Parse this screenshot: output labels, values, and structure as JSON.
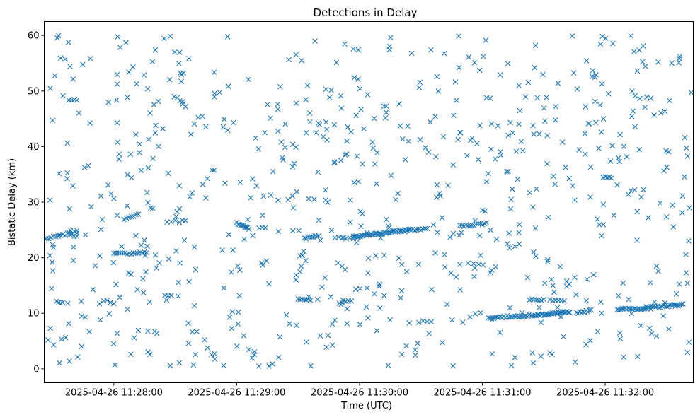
{
  "chart_data": {
    "type": "scatter",
    "title": "Detections in Delay",
    "xlabel": "Time (UTC)",
    "ylabel": "Bistatic Delay (km)",
    "ylim": [
      -2.5,
      62.5
    ],
    "xlim": [
      "2025-04-26 11:27:26",
      "2025-04-26 11:32:43"
    ],
    "y_ticks": [
      0,
      10,
      20,
      30,
      40,
      50,
      60
    ],
    "x_ticks": [
      "2025-04-26 11:28:00",
      "2025-04-26 11:29:00",
      "2025-04-26 11:30:00",
      "2025-04-26 11:31:00",
      "2025-04-26 11:32:00"
    ],
    "marker": "x",
    "grid": false,
    "legend": "none",
    "color": "#1f77b4",
    "series": [
      {
        "tracks": [
          {
            "start": [
              "2025-04-26 11:27:27",
              23.4
            ],
            "end": [
              "2025-04-26 11:27:42",
              24.6
            ],
            "n": 14
          },
          {
            "start": [
              "2025-04-26 11:27:32",
              12.2
            ],
            "end": [
              "2025-04-26 11:27:35",
              11.9
            ],
            "n": 4
          },
          {
            "start": [
              "2025-04-26 11:27:38",
              48.2
            ],
            "end": [
              "2025-04-26 11:27:42",
              48.5
            ],
            "n": 4
          },
          {
            "start": [
              "2025-04-26 11:27:38",
              24.5
            ],
            "end": [
              "2025-04-26 11:27:42",
              23.7
            ],
            "n": 4
          },
          {
            "start": [
              "2025-04-26 11:27:55",
              12.4
            ],
            "end": [
              "2025-04-26 11:28:00",
              11.9
            ],
            "n": 4
          },
          {
            "start": [
              "2025-04-26 11:28:00",
              20.7
            ],
            "end": [
              "2025-04-26 11:28:16",
              20.9
            ],
            "n": 16
          },
          {
            "start": [
              "2025-04-26 11:28:05",
              27.0
            ],
            "end": [
              "2025-04-26 11:28:12",
              27.8
            ],
            "n": 7
          },
          {
            "start": [
              "2025-04-26 11:28:18",
              29.0
            ],
            "end": [
              "2025-04-26 11:28:19",
              28.8
            ],
            "n": 2
          },
          {
            "start": [
              "2025-04-26 11:28:25",
              13.2
            ],
            "end": [
              "2025-04-26 11:28:28",
              13.2
            ],
            "n": 3
          },
          {
            "start": [
              "2025-04-26 11:28:26",
              26.5
            ],
            "end": [
              "2025-04-26 11:28:30",
              26.7
            ],
            "n": 3
          },
          {
            "start": [
              "2025-04-26 11:28:31",
              48.8
            ],
            "end": [
              "2025-04-26 11:28:35",
              47.2
            ],
            "n": 4
          },
          {
            "start": [
              "2025-04-26 11:28:32",
              26.5
            ],
            "end": [
              "2025-04-26 11:28:35",
              26.8
            ],
            "n": 3
          },
          {
            "start": [
              "2025-04-26 11:28:33",
              53.1
            ],
            "end": [
              "2025-04-26 11:28:34",
              53.1
            ],
            "n": 2
          },
          {
            "start": [
              "2025-04-26 11:28:48",
              35.7
            ],
            "end": [
              "2025-04-26 11:28:49",
              35.7
            ],
            "n": 2
          },
          {
            "start": [
              "2025-04-26 11:29:00",
              26.2
            ],
            "end": [
              "2025-04-26 11:29:06",
              25.3
            ],
            "n": 10
          },
          {
            "start": [
              "2025-04-26 11:29:11",
              25.4
            ],
            "end": [
              "2025-04-26 11:29:14",
              25.3
            ],
            "n": 3
          },
          {
            "start": [
              "2025-04-26 11:29:30",
              12.6
            ],
            "end": [
              "2025-04-26 11:29:36",
              12.4
            ],
            "n": 7
          },
          {
            "start": [
              "2025-04-26 11:29:33",
              23.5
            ],
            "end": [
              "2025-04-26 11:29:40",
              24.0
            ],
            "n": 9
          },
          {
            "start": [
              "2025-04-26 11:29:48",
              23.6
            ],
            "end": [
              "2025-04-26 11:29:57",
              23.6
            ],
            "n": 6
          },
          {
            "start": [
              "2025-04-26 11:29:52",
              12.2
            ],
            "end": [
              "2025-04-26 11:29:56",
              12.2
            ],
            "n": 4
          },
          {
            "start": [
              "2025-04-26 11:29:57",
              23.7
            ],
            "end": [
              "2025-04-26 11:30:25",
              25.1
            ],
            "n": 50
          },
          {
            "start": [
              "2025-04-26 11:30:12",
              47.1
            ],
            "end": [
              "2025-04-26 11:30:13",
              47.3
            ],
            "n": 2
          },
          {
            "start": [
              "2025-04-26 11:30:26",
              25.0
            ],
            "end": [
              "2025-04-26 11:30:33",
              25.2
            ],
            "n": 8
          },
          {
            "start": [
              "2025-04-26 11:30:29",
              8.5
            ],
            "end": [
              "2025-04-26 11:30:35",
              8.5
            ],
            "n": 4
          },
          {
            "start": [
              "2025-04-26 11:30:49",
              25.7
            ],
            "end": [
              "2025-04-26 11:30:56",
              25.9
            ],
            "n": 8
          },
          {
            "start": [
              "2025-04-26 11:30:57",
              26.0
            ],
            "end": [
              "2025-04-26 11:31:02",
              26.2
            ],
            "n": 6
          },
          {
            "start": [
              "2025-04-26 11:31:03",
              9.2
            ],
            "end": [
              "2025-04-26 11:31:27",
              9.7
            ],
            "n": 30
          },
          {
            "start": [
              "2025-04-26 11:31:23",
              12.4
            ],
            "end": [
              "2025-04-26 11:31:30",
              12.4
            ],
            "n": 7
          },
          {
            "start": [
              "2025-04-26 11:31:27",
              9.7
            ],
            "end": [
              "2025-04-26 11:31:42",
              10.2
            ],
            "n": 26
          },
          {
            "start": [
              "2025-04-26 11:31:33",
              12.3
            ],
            "end": [
              "2025-04-26 11:31:40",
              12.1
            ],
            "n": 6
          },
          {
            "start": [
              "2025-04-26 11:31:46",
              10.1
            ],
            "end": [
              "2025-04-26 11:31:53",
              10.5
            ],
            "n": 10
          },
          {
            "start": [
              "2025-04-26 11:31:59",
              34.6
            ],
            "end": [
              "2025-04-26 11:32:03",
              34.5
            ],
            "n": 5
          },
          {
            "start": [
              "2025-04-26 11:32:06",
              10.7
            ],
            "end": [
              "2025-04-26 11:32:20",
              10.9
            ],
            "n": 20
          },
          {
            "start": [
              "2025-04-26 11:32:20",
              11.0
            ],
            "end": [
              "2025-04-26 11:32:38",
              11.6
            ],
            "n": 24
          }
        ],
        "noise": {
          "n": 720,
          "x_range": [
            "2025-04-26 11:27:27",
            "2025-04-26 11:32:42"
          ],
          "y_range": [
            0.5,
            60
          ],
          "seed": 7
        }
      }
    ]
  }
}
